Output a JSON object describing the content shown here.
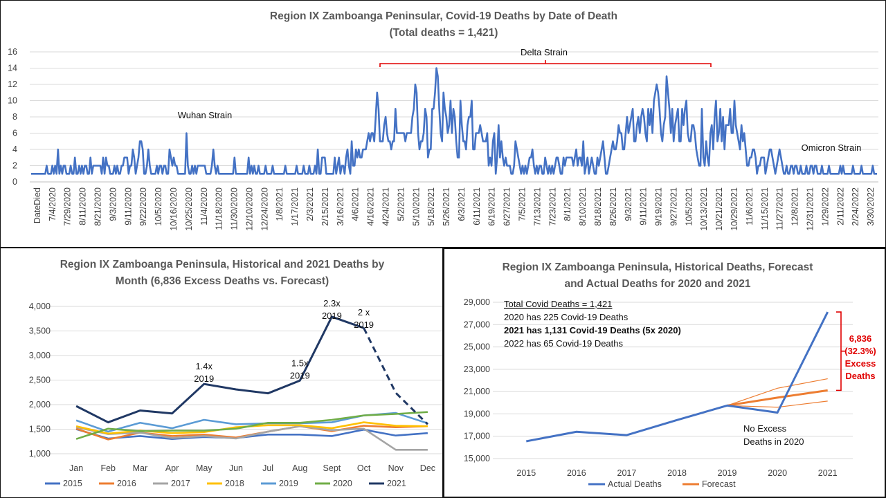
{
  "chart_data": [
    {
      "type": "line",
      "title": "Region IX Zamboanga  Peninsular, Covid-19 Deaths by Date of Death",
      "subtitle": "(Total deaths = 1,421)",
      "ylim": [
        0,
        16
      ],
      "yticks": [
        "0",
        "2",
        "4",
        "6",
        "8",
        "10",
        "12",
        "14",
        "16"
      ],
      "xtick_labels": [
        "DateDied",
        "7/4/2020",
        "7/29/2020",
        "8/11/2020",
        "8/21/2020",
        "9/3/2020",
        "9/11/2020",
        "9/22/2020",
        "10/5/2020",
        "10/16/2020",
        "10/25/2020",
        "11/4/2020",
        "11/18/2020",
        "11/30/2020",
        "12/10/2020",
        "12/24/2020",
        "1/8/2021",
        "1/17/2021",
        "2/3/2021",
        "2/15/2021",
        "3/16/2021",
        "4/6/2021",
        "4/16/2021",
        "4/24/2021",
        "5/2/2021",
        "5/10/2021",
        "5/18/2021",
        "5/26/2021",
        "6/3/2021",
        "6/11/2021",
        "6/19/2021",
        "6/27/2021",
        "7/5/2021",
        "7/13/2021",
        "7/23/2021",
        "8/1/2021",
        "8/10/2021",
        "8/18/2021",
        "8/26/2021",
        "9/3/2021",
        "9/11/2021",
        "9/19/2021",
        "9/27/2021",
        "10/5/2021",
        "10/13/2021",
        "10/21/2021",
        "10/29/2021",
        "11/6/2021",
        "11/15/2021",
        "11/27/2021",
        "12/8/2021",
        "12/31/2021",
        "1/29/2022",
        "2/11/2022",
        "2/24/2022",
        "3/30/2022"
      ],
      "annotations": {
        "wuhan": "Wuhan Strain",
        "delta": "Delta Strain",
        "omicron": "Omicron Strain"
      },
      "color": "#4472c4",
      "bracket_color": "#e00000",
      "series": [
        {
          "values": [
            1,
            1,
            1,
            1,
            1,
            1,
            1,
            1,
            1,
            1,
            1,
            2,
            1,
            1,
            1,
            2,
            1,
            2,
            1,
            4,
            1,
            2,
            1,
            2,
            2,
            1,
            1,
            1,
            2,
            1,
            1,
            3,
            1,
            1,
            2,
            1,
            2,
            1,
            2,
            2,
            1,
            1,
            3,
            1,
            2,
            2,
            2,
            2,
            2,
            2,
            1,
            3,
            1,
            3,
            2,
            2,
            1,
            1,
            1,
            2,
            1,
            2,
            1,
            1,
            2,
            2,
            3,
            3,
            3,
            1,
            2,
            2,
            4,
            3,
            1,
            2,
            3,
            5,
            5,
            4,
            1,
            1,
            2,
            4,
            2,
            1,
            1,
            1,
            1,
            2,
            1,
            2,
            2,
            1,
            2,
            2,
            1,
            1,
            4,
            3,
            2,
            3,
            2,
            2,
            1,
            1,
            1,
            1,
            1,
            1,
            6,
            2,
            1,
            1,
            2,
            1,
            2,
            1,
            2,
            2,
            2,
            2,
            2,
            2,
            1,
            1,
            1,
            1,
            2,
            4,
            2,
            1,
            2,
            1,
            1,
            1,
            1,
            1,
            1,
            1,
            1,
            1,
            1,
            1,
            3,
            1,
            1,
            1,
            1,
            1,
            1,
            1,
            1,
            1,
            3,
            1,
            2,
            1,
            2,
            1,
            1,
            2,
            1,
            1,
            1,
            1,
            2,
            1,
            1,
            1,
            1,
            2,
            1,
            1,
            1,
            1,
            1,
            1,
            1,
            1,
            2,
            1,
            1,
            1,
            1,
            1,
            1,
            1,
            2,
            1,
            1,
            1,
            1,
            2,
            1,
            1,
            1,
            2,
            1,
            1,
            1,
            2,
            1,
            4,
            1,
            1,
            3,
            3,
            3,
            1,
            1,
            1,
            1,
            1,
            1,
            3,
            1,
            2,
            3,
            1,
            2,
            2,
            1,
            3,
            4,
            2,
            1,
            5,
            2,
            2,
            4,
            3,
            4,
            3,
            3,
            4,
            4,
            4,
            5,
            6,
            5,
            6,
            6,
            5,
            8,
            11,
            9,
            5,
            5,
            5,
            7,
            8,
            6,
            5,
            5,
            4,
            5,
            5,
            9,
            6,
            6,
            6,
            6,
            6,
            6,
            5,
            6,
            6,
            6,
            6,
            8,
            9,
            12,
            11,
            6,
            4,
            5,
            5,
            6,
            9,
            8,
            3,
            4,
            4,
            9,
            9,
            11,
            14,
            13,
            9,
            6,
            5,
            11,
            9,
            8,
            6,
            7,
            10,
            6,
            9,
            8,
            5,
            3,
            3,
            10,
            7,
            5,
            5,
            4,
            7,
            8,
            8,
            10,
            4,
            4,
            6,
            6,
            6,
            7,
            6,
            5,
            5,
            5,
            6,
            2,
            3,
            2,
            5,
            6,
            1,
            3,
            7,
            3,
            5,
            3,
            2,
            3,
            2,
            2,
            2,
            1,
            1,
            2,
            5,
            4,
            3,
            2,
            1,
            2,
            1,
            2,
            1,
            2,
            3,
            3,
            4,
            2,
            1,
            2,
            1,
            2,
            2,
            1,
            1,
            3,
            2,
            1,
            2,
            1,
            2,
            1,
            2,
            3,
            3,
            2,
            1,
            1,
            3,
            2,
            3,
            3,
            3,
            3,
            3,
            2,
            3,
            4,
            2,
            3,
            3,
            2,
            5,
            1,
            2,
            3,
            1,
            2,
            3,
            2,
            1,
            1,
            3,
            2,
            3,
            4,
            5,
            3,
            1,
            1,
            2,
            3,
            4,
            5,
            4,
            4,
            5,
            7,
            6,
            6,
            4,
            4,
            6,
            8,
            6,
            7,
            8,
            9,
            5,
            5,
            7,
            8,
            6,
            8,
            9,
            8,
            6,
            5,
            9,
            7,
            9,
            6,
            10,
            11,
            12,
            11,
            9,
            6,
            5,
            7,
            8,
            13,
            11,
            9,
            6,
            9,
            5,
            7,
            8,
            9,
            5,
            5,
            9,
            7,
            9,
            10,
            6,
            5,
            5,
            7,
            7,
            6,
            4,
            3,
            2,
            2,
            9,
            3,
            2,
            5,
            3,
            2,
            6,
            7,
            4,
            8,
            10,
            5,
            6,
            9,
            5,
            8,
            4,
            7,
            7,
            7,
            9,
            6,
            6,
            10,
            7,
            6,
            5,
            4,
            7,
            5,
            6,
            4,
            2,
            2,
            3,
            3,
            4,
            4,
            3,
            1,
            2,
            2,
            3,
            3,
            3,
            1,
            2,
            3,
            4,
            4,
            3,
            2,
            1,
            2,
            3,
            4,
            3,
            2,
            1,
            1,
            2,
            1,
            1,
            2,
            2,
            1,
            2,
            2,
            1,
            1,
            2,
            1,
            1,
            1,
            2,
            1,
            1,
            2,
            2,
            1,
            2,
            2,
            1,
            1,
            1,
            2,
            1,
            1,
            1,
            1,
            2,
            1,
            1,
            1,
            1,
            1,
            1,
            1,
            2,
            1,
            2,
            1,
            1,
            1,
            1,
            1,
            1,
            2,
            1,
            1,
            1,
            1,
            1,
            2,
            1,
            1,
            1,
            1,
            1,
            1,
            1,
            2,
            1,
            1,
            1
          ]
        }
      ]
    },
    {
      "type": "line",
      "title": "Region IX Zamboanga  Peninsula, Historical and 2021 Deaths by",
      "subtitle": "Month (6,836 Excess Deaths vs. Forecast)",
      "categories": [
        "Jan",
        "Feb",
        "Mar",
        "Apr",
        "May",
        "Jun",
        "Jul",
        "Aug",
        "Sept",
        "Oct",
        "Nov",
        "Dec"
      ],
      "ylim": [
        1000,
        4000
      ],
      "yticks": [
        "1,000",
        "1,500",
        "2,000",
        "2,500",
        "3,000",
        "3,500",
        "4,000"
      ],
      "series": [
        {
          "name": "2015",
          "color": "#4472c4",
          "values": [
            1500,
            1310,
            1360,
            1300,
            1340,
            1320,
            1390,
            1390,
            1360,
            1490,
            1370,
            1420
          ]
        },
        {
          "name": "2016",
          "color": "#ed7d31",
          "values": [
            1510,
            1290,
            1430,
            1360,
            1390,
            1330,
            1450,
            1560,
            1460,
            1570,
            1540,
            1560
          ]
        },
        {
          "name": "2017",
          "color": "#a5a5a5",
          "values": [
            1540,
            1400,
            1430,
            1320,
            1360,
            1310,
            1450,
            1560,
            1480,
            1510,
            1080,
            1080
          ]
        },
        {
          "name": "2018",
          "color": "#ffc000",
          "values": [
            1560,
            1410,
            1470,
            1420,
            1440,
            1540,
            1580,
            1580,
            1520,
            1640,
            1570,
            1560
          ]
        },
        {
          "name": "2019",
          "color": "#5b9bd5",
          "values": [
            1680,
            1450,
            1630,
            1520,
            1690,
            1600,
            1620,
            1620,
            1640,
            1780,
            1830,
            1620
          ]
        },
        {
          "name": "2020",
          "color": "#70ad47",
          "values": [
            1300,
            1510,
            1460,
            1470,
            1470,
            1510,
            1630,
            1630,
            1690,
            1780,
            1810,
            1850
          ]
        },
        {
          "name": "2021",
          "color": "#203864",
          "values": [
            1970,
            1640,
            1880,
            1820,
            2420,
            2310,
            2230,
            2490,
            3790,
            3560,
            2240,
            1600
          ],
          "dashed_from": 9
        }
      ],
      "annotations": [
        {
          "lines": [
            "1.4x",
            "2019"
          ],
          "at": 4,
          "y": 2720
        },
        {
          "lines": [
            "1.5x",
            "2019"
          ],
          "at": 7,
          "y": 2780
        },
        {
          "lines": [
            "2.3x",
            "2019"
          ],
          "at": 8,
          "y": 4000
        },
        {
          "lines": [
            "2 x",
            "2019"
          ],
          "at": 9,
          "y": 3820
        }
      ]
    },
    {
      "type": "line",
      "title": "Region IX Zamboanga  Peninsula, Historical Deaths, Forecast",
      "subtitle": "and Actual Deaths for 2020 and  2021",
      "categories": [
        "2015",
        "2016",
        "2017",
        "2018",
        "2019",
        "2020",
        "2021"
      ],
      "ylim": [
        15000,
        29000
      ],
      "yticks": [
        "15,000",
        "17,000",
        "19,000",
        "21,000",
        "23,000",
        "25,000",
        "27,000",
        "29,000"
      ],
      "series": [
        {
          "name": "Actual Deaths",
          "color": "#4472c4",
          "values": [
            16550,
            17400,
            17100,
            18450,
            19750,
            19120,
            28130
          ]
        },
        {
          "name": "Forecast",
          "color": "#ed7d31",
          "values": [
            null,
            null,
            null,
            null,
            19750,
            20460,
            21110
          ],
          "upper": [
            null,
            null,
            null,
            null,
            19750,
            21300,
            22150
          ],
          "lower": [
            null,
            null,
            null,
            null,
            19750,
            19600,
            20150
          ]
        }
      ],
      "text_box": [
        {
          "text": "Total Covid Deaths = 1,421",
          "style": "underline"
        },
        {
          "text": "2020 has 225 Covid-19 Deaths",
          "style": "normal"
        },
        {
          "text": "2021 has 1,131 Covid-19 Deaths (5x 2020)",
          "style": "bold"
        },
        {
          "text": "2022 has 65 Covid-19 Deaths",
          "style": "normal"
        }
      ],
      "excess_label": [
        "6,836",
        "(32.3%)",
        "Excess",
        "Deaths"
      ],
      "no_excess_label": [
        "No Excess",
        "Deaths in 2020"
      ],
      "excess_color": "#e00000"
    }
  ]
}
